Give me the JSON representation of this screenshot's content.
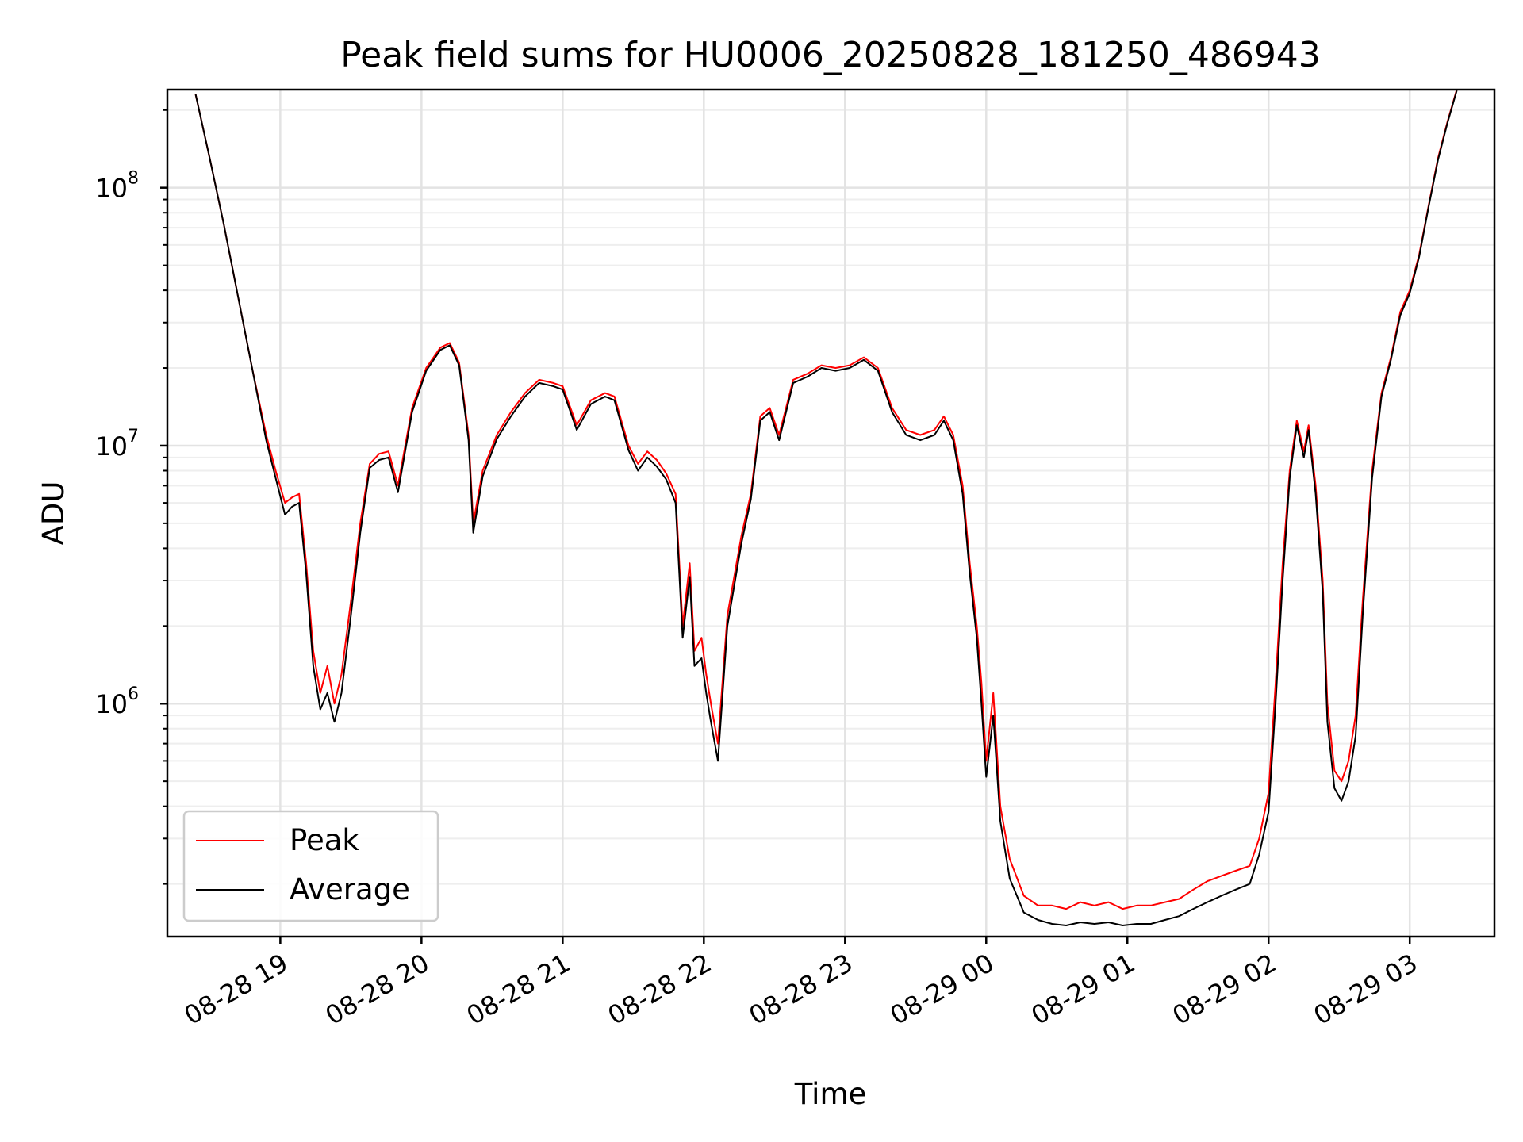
{
  "chart_data": {
    "type": "line",
    "title": "Peak field sums for HU0006_20250828_181250_486943",
    "xlabel": "Time",
    "ylabel": "ADU",
    "y_scale": "log",
    "ylim": [
      125000,
      240000000
    ],
    "xlim": [
      "2025-08-28 18:12",
      "2025-08-29 03:36"
    ],
    "x_ticks": [
      {
        "t": "2025-08-28 19:00",
        "label": "08-28 19"
      },
      {
        "t": "2025-08-28 20:00",
        "label": "08-28 20"
      },
      {
        "t": "2025-08-28 21:00",
        "label": "08-28 21"
      },
      {
        "t": "2025-08-28 22:00",
        "label": "08-28 22"
      },
      {
        "t": "2025-08-28 23:00",
        "label": "08-28 23"
      },
      {
        "t": "2025-08-29 00:00",
        "label": "08-29 00"
      },
      {
        "t": "2025-08-29 01:00",
        "label": "08-29 01"
      },
      {
        "t": "2025-08-29 02:00",
        "label": "08-29 02"
      },
      {
        "t": "2025-08-29 03:00",
        "label": "08-29 03"
      }
    ],
    "y_ticks": [
      {
        "value": 1000000,
        "base": "10",
        "exp": "6"
      },
      {
        "value": 10000000,
        "base": "10",
        "exp": "7"
      },
      {
        "value": 100000000,
        "base": "10",
        "exp": "8"
      }
    ],
    "grid": true,
    "legend_position": "lower-left",
    "colors": {
      "peak": "#ff0000",
      "average": "#000000"
    },
    "series": [
      {
        "name": "Peak",
        "color": "#ff0000",
        "x": [
          "2025-08-28 18:24",
          "2025-08-28 18:30",
          "2025-08-28 18:36",
          "2025-08-28 18:42",
          "2025-08-28 18:48",
          "2025-08-28 18:54",
          "2025-08-28 18:58",
          "2025-08-28 19:02",
          "2025-08-28 19:05",
          "2025-08-28 19:08",
          "2025-08-28 19:11",
          "2025-08-28 19:14",
          "2025-08-28 19:17",
          "2025-08-28 19:20",
          "2025-08-28 19:23",
          "2025-08-28 19:26",
          "2025-08-28 19:30",
          "2025-08-28 19:34",
          "2025-08-28 19:38",
          "2025-08-28 19:42",
          "2025-08-28 19:46",
          "2025-08-28 19:50",
          "2025-08-28 19:56",
          "2025-08-28 20:02",
          "2025-08-28 20:08",
          "2025-08-28 20:12",
          "2025-08-28 20:16",
          "2025-08-28 20:20",
          "2025-08-28 20:22",
          "2025-08-28 20:26",
          "2025-08-28 20:32",
          "2025-08-28 20:38",
          "2025-08-28 20:44",
          "2025-08-28 20:50",
          "2025-08-28 20:56",
          "2025-08-28 21:00",
          "2025-08-28 21:06",
          "2025-08-28 21:12",
          "2025-08-28 21:18",
          "2025-08-28 21:22",
          "2025-08-28 21:28",
          "2025-08-28 21:32",
          "2025-08-28 21:36",
          "2025-08-28 21:40",
          "2025-08-28 21:44",
          "2025-08-28 21:48",
          "2025-08-28 21:51",
          "2025-08-28 21:54",
          "2025-08-28 21:56",
          "2025-08-28 21:59",
          "2025-08-28 22:01",
          "2025-08-28 22:03",
          "2025-08-28 22:06",
          "2025-08-28 22:10",
          "2025-08-28 22:16",
          "2025-08-28 22:20",
          "2025-08-28 22:24",
          "2025-08-28 22:28",
          "2025-08-28 22:32",
          "2025-08-28 22:38",
          "2025-08-28 22:44",
          "2025-08-28 22:50",
          "2025-08-28 22:56",
          "2025-08-28 23:02",
          "2025-08-28 23:08",
          "2025-08-28 23:14",
          "2025-08-28 23:20",
          "2025-08-28 23:26",
          "2025-08-28 23:32",
          "2025-08-28 23:38",
          "2025-08-28 23:42",
          "2025-08-28 23:46",
          "2025-08-28 23:50",
          "2025-08-28 23:53",
          "2025-08-28 23:56",
          "2025-08-28 23:58",
          "2025-08-29 00:00",
          "2025-08-29 00:03",
          "2025-08-29 00:06",
          "2025-08-29 00:10",
          "2025-08-29 00:16",
          "2025-08-29 00:22",
          "2025-08-29 00:28",
          "2025-08-29 00:34",
          "2025-08-29 00:40",
          "2025-08-29 00:46",
          "2025-08-29 00:52",
          "2025-08-29 00:58",
          "2025-08-29 01:04",
          "2025-08-29 01:10",
          "2025-08-29 01:16",
          "2025-08-29 01:22",
          "2025-08-29 01:28",
          "2025-08-29 01:34",
          "2025-08-29 01:40",
          "2025-08-29 01:46",
          "2025-08-29 01:52",
          "2025-08-29 01:56",
          "2025-08-29 02:00",
          "2025-08-29 02:03",
          "2025-08-29 02:06",
          "2025-08-29 02:09",
          "2025-08-29 02:12",
          "2025-08-29 02:15",
          "2025-08-29 02:17",
          "2025-08-29 02:20",
          "2025-08-29 02:23",
          "2025-08-29 02:25",
          "2025-08-29 02:28",
          "2025-08-29 02:31",
          "2025-08-29 02:34",
          "2025-08-29 02:37",
          "2025-08-29 02:40",
          "2025-08-29 02:44",
          "2025-08-29 02:48",
          "2025-08-29 02:52",
          "2025-08-29 02:56",
          "2025-08-29 03:00",
          "2025-08-29 03:04",
          "2025-08-29 03:08",
          "2025-08-29 03:12",
          "2025-08-29 03:16",
          "2025-08-29 03:20"
        ],
        "values": [
          230000000,
          130000000,
          72000000,
          38000000,
          20000000,
          11000000,
          8000000,
          6000000,
          6300000,
          6500000,
          3500000,
          1600000,
          1100000,
          1400000,
          1000000,
          1300000,
          2500000,
          5000000,
          8500000,
          9300000,
          9500000,
          7000000,
          14000000,
          20000000,
          24000000,
          25000000,
          21000000,
          11000000,
          5000000,
          8000000,
          11000000,
          13500000,
          16000000,
          18000000,
          17500000,
          17000000,
          12000000,
          15000000,
          16000000,
          15500000,
          10000000,
          8500000,
          9500000,
          8800000,
          7800000,
          6500000,
          2000000,
          3500000,
          1600000,
          1800000,
          1300000,
          1000000,
          700000,
          2200000,
          4500000,
          6500000,
          13000000,
          14000000,
          11000000,
          18000000,
          19000000,
          20500000,
          20000000,
          20500000,
          22000000,
          20000000,
          14000000,
          11500000,
          11000000,
          11500000,
          13000000,
          11000000,
          7000000,
          3500000,
          2000000,
          1200000,
          600000,
          1100000,
          400000,
          250000,
          180000,
          165000,
          165000,
          160000,
          170000,
          165000,
          170000,
          160000,
          165000,
          165000,
          170000,
          175000,
          190000,
          205000,
          215000,
          225000,
          235000,
          300000,
          450000,
          1200000,
          3500000,
          8000000,
          12500000,
          9500000,
          12000000,
          7000000,
          3000000,
          1000000,
          550000,
          500000,
          600000,
          900000,
          2500000,
          8000000,
          16000000,
          22000000,
          33000000,
          40000000,
          55000000,
          85000000,
          130000000,
          180000000,
          240000000
        ]
      },
      {
        "name": "Average",
        "color": "#000000",
        "x": [
          "2025-08-28 18:24",
          "2025-08-28 18:30",
          "2025-08-28 18:36",
          "2025-08-28 18:42",
          "2025-08-28 18:48",
          "2025-08-28 18:54",
          "2025-08-28 18:58",
          "2025-08-28 19:02",
          "2025-08-28 19:05",
          "2025-08-28 19:08",
          "2025-08-28 19:11",
          "2025-08-28 19:14",
          "2025-08-28 19:17",
          "2025-08-28 19:20",
          "2025-08-28 19:23",
          "2025-08-28 19:26",
          "2025-08-28 19:30",
          "2025-08-28 19:34",
          "2025-08-28 19:38",
          "2025-08-28 19:42",
          "2025-08-28 19:46",
          "2025-08-28 19:50",
          "2025-08-28 19:56",
          "2025-08-28 20:02",
          "2025-08-28 20:08",
          "2025-08-28 20:12",
          "2025-08-28 20:16",
          "2025-08-28 20:20",
          "2025-08-28 20:22",
          "2025-08-28 20:26",
          "2025-08-28 20:32",
          "2025-08-28 20:38",
          "2025-08-28 20:44",
          "2025-08-28 20:50",
          "2025-08-28 20:56",
          "2025-08-28 21:00",
          "2025-08-28 21:06",
          "2025-08-28 21:12",
          "2025-08-28 21:18",
          "2025-08-28 21:22",
          "2025-08-28 21:28",
          "2025-08-28 21:32",
          "2025-08-28 21:36",
          "2025-08-28 21:40",
          "2025-08-28 21:44",
          "2025-08-28 21:48",
          "2025-08-28 21:51",
          "2025-08-28 21:54",
          "2025-08-28 21:56",
          "2025-08-28 21:59",
          "2025-08-28 22:01",
          "2025-08-28 22:03",
          "2025-08-28 22:06",
          "2025-08-28 22:10",
          "2025-08-28 22:16",
          "2025-08-28 22:20",
          "2025-08-28 22:24",
          "2025-08-28 22:28",
          "2025-08-28 22:32",
          "2025-08-28 22:38",
          "2025-08-28 22:44",
          "2025-08-28 22:50",
          "2025-08-28 22:56",
          "2025-08-28 23:02",
          "2025-08-28 23:08",
          "2025-08-28 23:14",
          "2025-08-28 23:20",
          "2025-08-28 23:26",
          "2025-08-28 23:32",
          "2025-08-28 23:38",
          "2025-08-28 23:42",
          "2025-08-28 23:46",
          "2025-08-28 23:50",
          "2025-08-28 23:53",
          "2025-08-28 23:56",
          "2025-08-28 23:58",
          "2025-08-29 00:00",
          "2025-08-29 00:03",
          "2025-08-29 00:06",
          "2025-08-29 00:10",
          "2025-08-29 00:16",
          "2025-08-29 00:22",
          "2025-08-29 00:28",
          "2025-08-29 00:34",
          "2025-08-29 00:40",
          "2025-08-29 00:46",
          "2025-08-29 00:52",
          "2025-08-29 00:58",
          "2025-08-29 01:04",
          "2025-08-29 01:10",
          "2025-08-29 01:16",
          "2025-08-29 01:22",
          "2025-08-29 01:28",
          "2025-08-29 01:34",
          "2025-08-29 01:40",
          "2025-08-29 01:46",
          "2025-08-29 01:52",
          "2025-08-29 01:56",
          "2025-08-29 02:00",
          "2025-08-29 02:03",
          "2025-08-29 02:06",
          "2025-08-29 02:09",
          "2025-08-29 02:12",
          "2025-08-29 02:15",
          "2025-08-29 02:17",
          "2025-08-29 02:20",
          "2025-08-29 02:23",
          "2025-08-29 02:25",
          "2025-08-29 02:28",
          "2025-08-29 02:31",
          "2025-08-29 02:34",
          "2025-08-29 02:37",
          "2025-08-29 02:40",
          "2025-08-29 02:44",
          "2025-08-29 02:48",
          "2025-08-29 02:52",
          "2025-08-29 02:56",
          "2025-08-29 03:00",
          "2025-08-29 03:04",
          "2025-08-29 03:08",
          "2025-08-29 03:12",
          "2025-08-29 03:16",
          "2025-08-29 03:20"
        ],
        "values": [
          230000000,
          130000000,
          72000000,
          38000000,
          20000000,
          10500000,
          7500000,
          5400000,
          5800000,
          6000000,
          3200000,
          1400000,
          950000,
          1100000,
          850000,
          1100000,
          2200000,
          4600000,
          8200000,
          8800000,
          9000000,
          6600000,
          13500000,
          19500000,
          23500000,
          24500000,
          20500000,
          10500000,
          4600000,
          7600000,
          10600000,
          13000000,
          15500000,
          17500000,
          17000000,
          16500000,
          11500000,
          14500000,
          15500000,
          15000000,
          9600000,
          8000000,
          9000000,
          8300000,
          7400000,
          6000000,
          1800000,
          3100000,
          1400000,
          1500000,
          1100000,
          850000,
          600000,
          2000000,
          4200000,
          6200000,
          12500000,
          13500000,
          10500000,
          17500000,
          18500000,
          20000000,
          19500000,
          20000000,
          21500000,
          19500000,
          13500000,
          11000000,
          10500000,
          11000000,
          12500000,
          10500000,
          6500000,
          3200000,
          1800000,
          1000000,
          520000,
          900000,
          350000,
          210000,
          155000,
          145000,
          140000,
          138000,
          142000,
          140000,
          142000,
          138000,
          140000,
          140000,
          145000,
          150000,
          160000,
          170000,
          180000,
          190000,
          200000,
          260000,
          380000,
          1000000,
          3000000,
          7500000,
          12000000,
          9000000,
          11500000,
          6500000,
          2700000,
          850000,
          470000,
          420000,
          500000,
          750000,
          2200000,
          7500000,
          15500000,
          21500000,
          32000000,
          39000000,
          54000000,
          84000000,
          128000000,
          178000000,
          238000000
        ]
      }
    ]
  }
}
